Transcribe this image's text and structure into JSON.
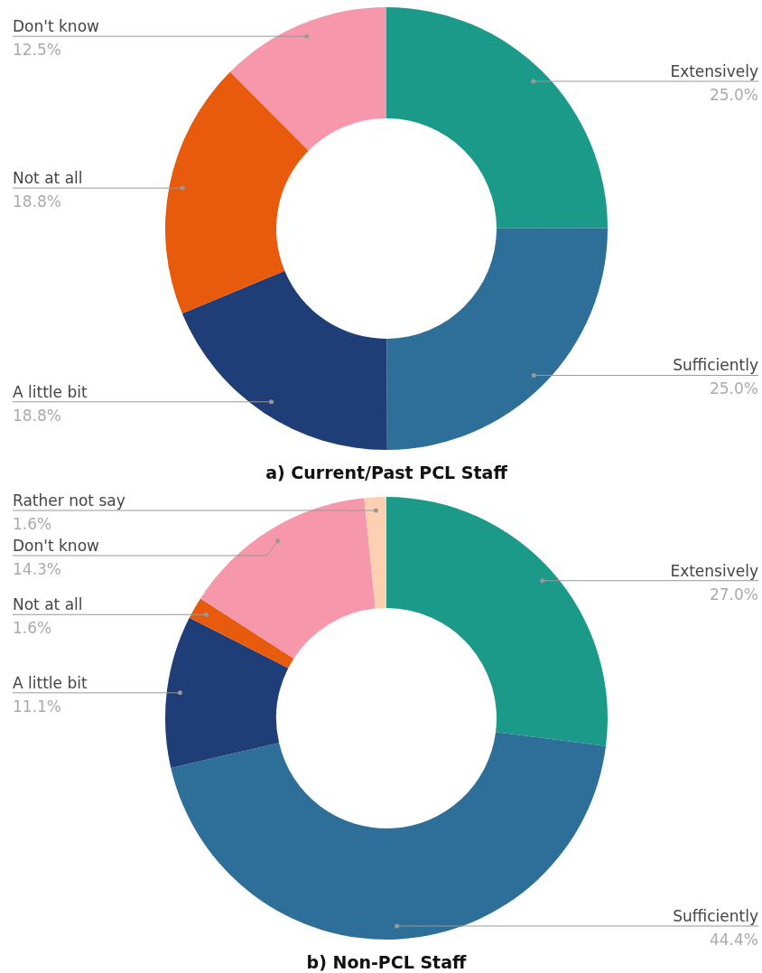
{
  "chart_data": [
    {
      "type": "donut",
      "title": "a) Current/Past PCL Staff",
      "categories": [
        "Extensively",
        "Sufficiently",
        "A little bit",
        "Not at all",
        "Don't know"
      ],
      "values": [
        25.0,
        25.0,
        18.8,
        18.8,
        12.5
      ],
      "colors": [
        "#1b9a8a",
        "#2e6f9a",
        "#1f3e78",
        "#e85a0c",
        "#f797ab"
      ],
      "value_labels": [
        "25.0%",
        "25.0%",
        "18.8%",
        "18.8%",
        "12.5%"
      ],
      "legend": false
    },
    {
      "type": "donut",
      "title": "b) Non-PCL Staff",
      "categories": [
        "Extensively",
        "Sufficiently",
        "A little bit",
        "Not at all",
        "Don't know",
        "Rather not say"
      ],
      "values": [
        27.0,
        44.4,
        11.1,
        1.6,
        14.3,
        1.6
      ],
      "colors": [
        "#1b9a8a",
        "#2e6f9a",
        "#1f3e78",
        "#e85a0c",
        "#f797ab",
        "#fdd0b1"
      ],
      "value_labels": [
        "27.0%",
        "44.4%",
        "11.1%",
        "1.6%",
        "14.3%",
        "1.6%"
      ],
      "legend": false
    }
  ]
}
